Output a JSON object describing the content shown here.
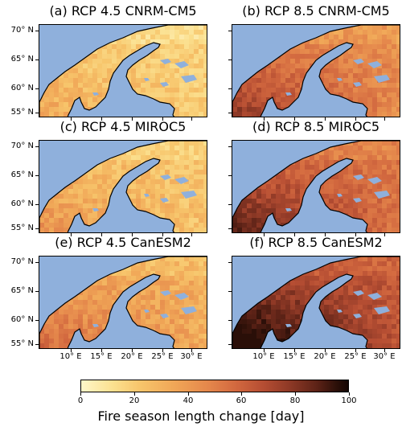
{
  "panels": [
    {
      "title": "(a) RCP 4.5 CNRM-CM5",
      "level": 0.18
    },
    {
      "title": "(b) RCP 8.5 CNRM-CM5",
      "level": 0.42
    },
    {
      "title": "(c) RCP 4.5 MIROC5",
      "level": 0.22
    },
    {
      "title": "(d) RCP 8.5 MIROC5",
      "level": 0.5
    },
    {
      "title": "(e) RCP 4.5 CanESM2",
      "level": 0.3
    },
    {
      "title": "(f) RCP 8.5 CanESM2",
      "level": 0.62
    }
  ],
  "latitude_labels": [
    "70° N",
    "65° N",
    "60° N",
    "55° N"
  ],
  "longitude_labels": [
    "10° E",
    "15° E",
    "20° E",
    "25° E",
    "30° E"
  ],
  "colorbar": {
    "ticks": [
      "0",
      "20",
      "40",
      "60",
      "80",
      "100"
    ],
    "label": "Fire season length change [day]",
    "min": 0,
    "max": 100
  },
  "colors": {
    "sea": "#8fb0dc",
    "lakes": "#8fb0dc",
    "coast": "#000000"
  }
}
